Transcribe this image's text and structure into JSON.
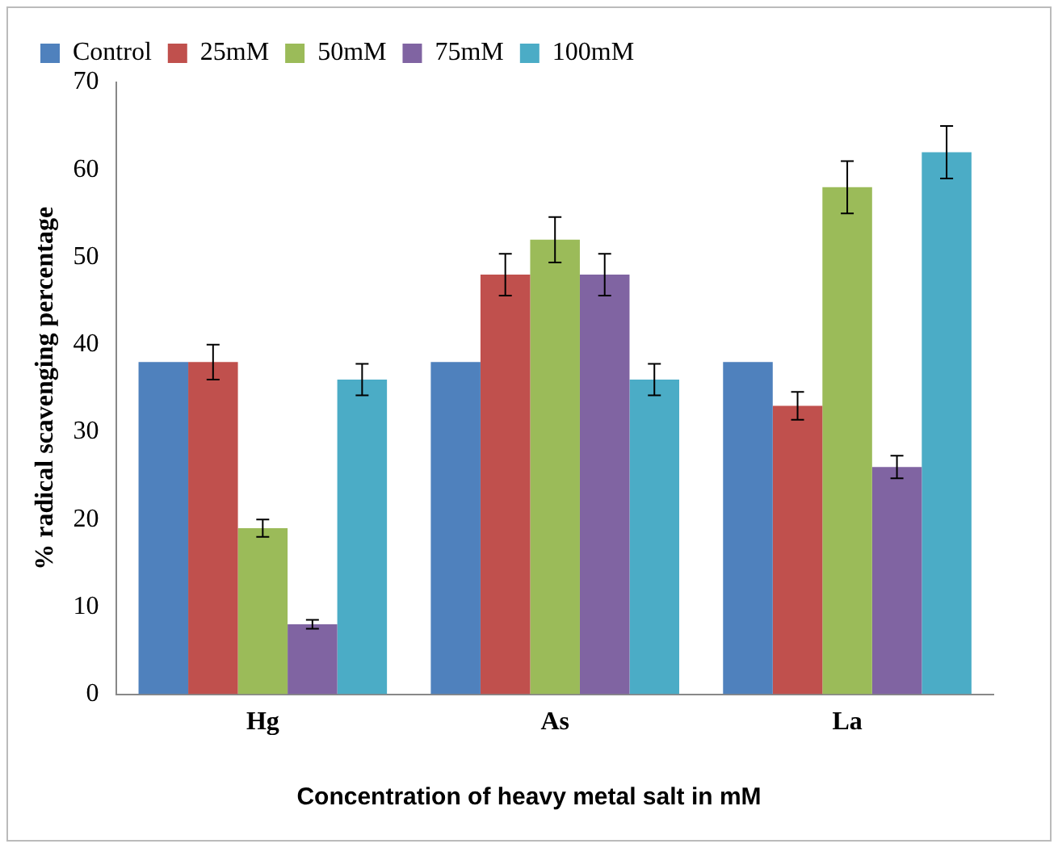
{
  "chart_data": {
    "type": "bar",
    "xlabel": "Concentration of heavy metal salt in mM",
    "ylabel": "% radical scavenging percentage",
    "categories": [
      "Hg",
      "As",
      "La"
    ],
    "series": [
      {
        "name": "Control",
        "color": "#4f81bd",
        "values": [
          38,
          38,
          38
        ]
      },
      {
        "name": "25mM",
        "color": "#c0504d",
        "values": [
          38,
          48,
          33
        ],
        "errors": [
          2,
          2.4,
          1.6
        ]
      },
      {
        "name": "50mM",
        "color": "#9bbb59",
        "values": [
          19,
          52,
          58
        ],
        "errors": [
          1,
          2.6,
          3
        ]
      },
      {
        "name": "75mM",
        "color": "#8064a2",
        "values": [
          8,
          48,
          26
        ],
        "errors": [
          0.5,
          2.4,
          1.3
        ]
      },
      {
        "name": "100mM",
        "color": "#4bacc6",
        "values": [
          36,
          36,
          62
        ],
        "errors": [
          1.8,
          1.8,
          3
        ]
      }
    ],
    "ylim": [
      0,
      70
    ],
    "yticks": [
      0,
      10,
      20,
      30,
      40,
      50,
      60,
      70
    ],
    "grid": false,
    "legend": "top left"
  }
}
